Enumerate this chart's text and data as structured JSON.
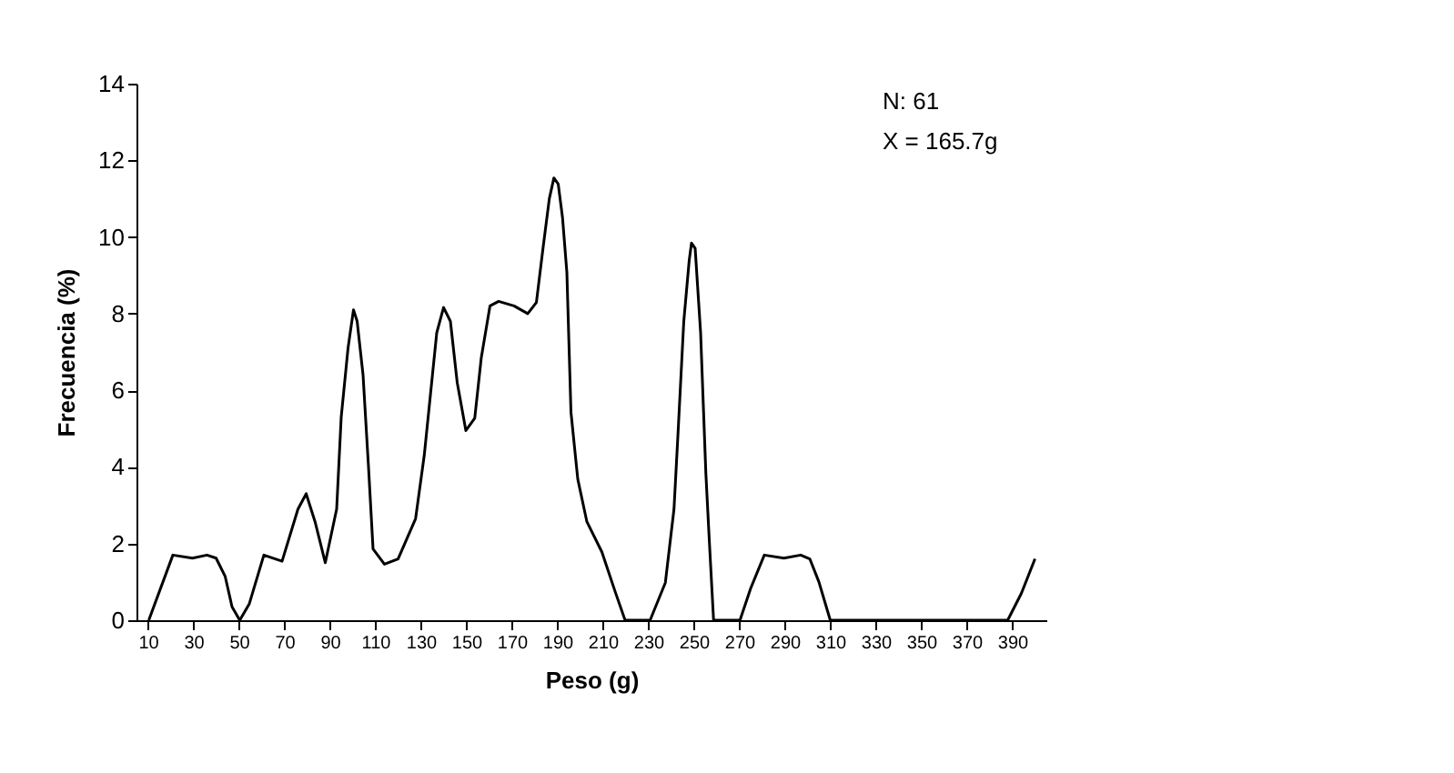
{
  "chart_data": {
    "type": "line",
    "xlabel": "Peso (g)",
    "ylabel": "Frecuencia (%)",
    "annotations": [
      "N: 61",
      "X = 165.7g"
    ],
    "x": [
      10.4,
      21,
      29.6,
      36,
      40,
      44,
      47,
      50.4,
      54.6,
      61,
      69,
      76,
      79.6,
      83.5,
      88,
      93,
      95,
      98,
      100.4,
      102,
      104.6,
      107,
      109,
      114,
      120,
      127.7,
      131.5,
      137,
      140,
      143,
      146,
      149.8,
      153.7,
      156.6,
      160.4,
      164.2,
      171,
      177,
      180.8,
      183.7,
      186.5,
      188.5,
      190.4,
      192.3,
      194.2,
      196,
      199,
      203,
      209.6,
      215.4,
      219.8,
      230.8,
      237.5,
      241.3,
      243,
      245.6,
      248,
      249,
      250.6,
      253,
      255.3,
      256.8,
      258.7,
      270.3,
      275,
      281,
      289.6,
      297,
      301,
      305,
      310,
      388,
      394,
      400
    ],
    "series": [
      {
        "color": "#000000",
        "values": [
          0,
          1.7,
          1.62,
          1.7,
          1.62,
          1.14,
          0.35,
          0,
          0.43,
          1.7,
          1.54,
          2.9,
          3.3,
          2.57,
          1.5,
          2.9,
          5.3,
          7.1,
          8.1,
          7.8,
          6.4,
          4.0,
          1.86,
          1.46,
          1.6,
          2.65,
          4.3,
          7.5,
          8.16,
          7.8,
          6.2,
          4.95,
          5.27,
          6.86,
          8.2,
          8.32,
          8.2,
          8.0,
          8.29,
          9.7,
          11.0,
          11.54,
          11.38,
          10.5,
          9.08,
          5.43,
          3.68,
          2.57,
          1.78,
          0.75,
          0,
          0,
          0.98,
          2.9,
          4.8,
          7.8,
          9.4,
          9.84,
          9.7,
          7.5,
          3.84,
          2.1,
          0,
          0,
          0.83,
          1.7,
          1.62,
          1.7,
          1.6,
          1.0,
          0,
          0,
          0.7,
          1.6
        ]
      }
    ],
    "xlim": [
      5,
      405
    ],
    "xticks": [
      10,
      30,
      50,
      70,
      90,
      110,
      130,
      150,
      170,
      190,
      210,
      230,
      250,
      270,
      290,
      310,
      330,
      350,
      370,
      390
    ],
    "ylim": [
      0,
      14
    ],
    "yticks": [
      0,
      2,
      4,
      6,
      8,
      10,
      12,
      14
    ],
    "grid": false,
    "marker": "none",
    "line_style": "solid"
  }
}
